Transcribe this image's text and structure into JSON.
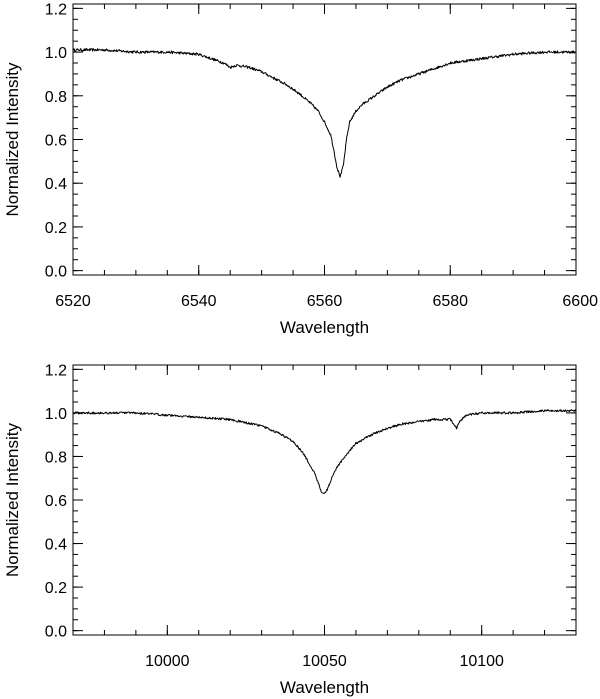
{
  "chart_data": [
    {
      "type": "line",
      "xlabel": "Wavelength",
      "ylabel": "Normalized Intensity",
      "xlim": [
        6520,
        6600
      ],
      "ylim": [
        -0.02,
        1.22
      ],
      "x_ticks": [
        6520,
        6540,
        6560,
        6580,
        6600
      ],
      "x_tick_labels": [
        "6520",
        "6540",
        "6560",
        "6580",
        "6600"
      ],
      "x_minor_step": 5,
      "y_ticks": [
        0.0,
        0.2,
        0.4,
        0.6,
        0.8,
        1.0,
        1.2
      ],
      "y_tick_labels": [
        "0.0",
        "0.2",
        "0.4",
        "0.6",
        "0.8",
        "1.0",
        "1.2"
      ],
      "y_minor_step": 0.05,
      "series": [
        {
          "x": [
            6520,
            6525,
            6530,
            6535,
            6540,
            6542,
            6544,
            6545,
            6546,
            6548,
            6550,
            6552,
            6554,
            6556,
            6558,
            6559,
            6560,
            6561,
            6561.5,
            6562,
            6562.5,
            6563,
            6563.5,
            6564,
            6565,
            6566,
            6568,
            6570,
            6572,
            6575,
            6578,
            6580,
            6585,
            6590,
            6595,
            6600
          ],
          "y": [
            1.01,
            1.01,
            1.0,
            1.0,
            0.99,
            0.97,
            0.95,
            0.93,
            0.94,
            0.93,
            0.91,
            0.88,
            0.85,
            0.81,
            0.76,
            0.73,
            0.68,
            0.62,
            0.55,
            0.47,
            0.43,
            0.48,
            0.6,
            0.68,
            0.73,
            0.76,
            0.8,
            0.84,
            0.87,
            0.9,
            0.93,
            0.95,
            0.97,
            0.99,
            1.0,
            1.0
          ],
          "noise": 0.006
        }
      ]
    },
    {
      "type": "line",
      "xlabel": "Wavelength",
      "ylabel": "Normalized Intensity",
      "xlim": [
        9970,
        10130
      ],
      "ylim": [
        -0.02,
        1.22
      ],
      "x_ticks": [
        10000,
        10050,
        10100
      ],
      "x_tick_labels": [
        "10000",
        "10050",
        "10100"
      ],
      "x_minor_step": 10,
      "y_ticks": [
        0.0,
        0.2,
        0.4,
        0.6,
        0.8,
        1.0,
        1.2
      ],
      "y_tick_labels": [
        "0.0",
        "0.2",
        "0.4",
        "0.6",
        "0.8",
        "1.0",
        "1.2"
      ],
      "y_minor_step": 0.05,
      "series": [
        {
          "x": [
            9970,
            9990,
            10000,
            10010,
            10020,
            10030,
            10035,
            10040,
            10043,
            10045,
            10047,
            10048,
            10049,
            10050,
            10051,
            10052,
            10054,
            10057,
            10060,
            10065,
            10070,
            10075,
            10080,
            10085,
            10090,
            10091,
            10092,
            10093,
            10095,
            10100,
            10110,
            10120,
            10130
          ],
          "y": [
            1.0,
            1.0,
            0.99,
            0.98,
            0.97,
            0.94,
            0.91,
            0.87,
            0.82,
            0.77,
            0.72,
            0.68,
            0.64,
            0.63,
            0.65,
            0.69,
            0.75,
            0.81,
            0.86,
            0.9,
            0.93,
            0.95,
            0.96,
            0.97,
            0.97,
            0.95,
            0.93,
            0.96,
            0.99,
            1.0,
            1.0,
            1.01,
            1.01
          ],
          "noise": 0.005
        }
      ]
    }
  ]
}
